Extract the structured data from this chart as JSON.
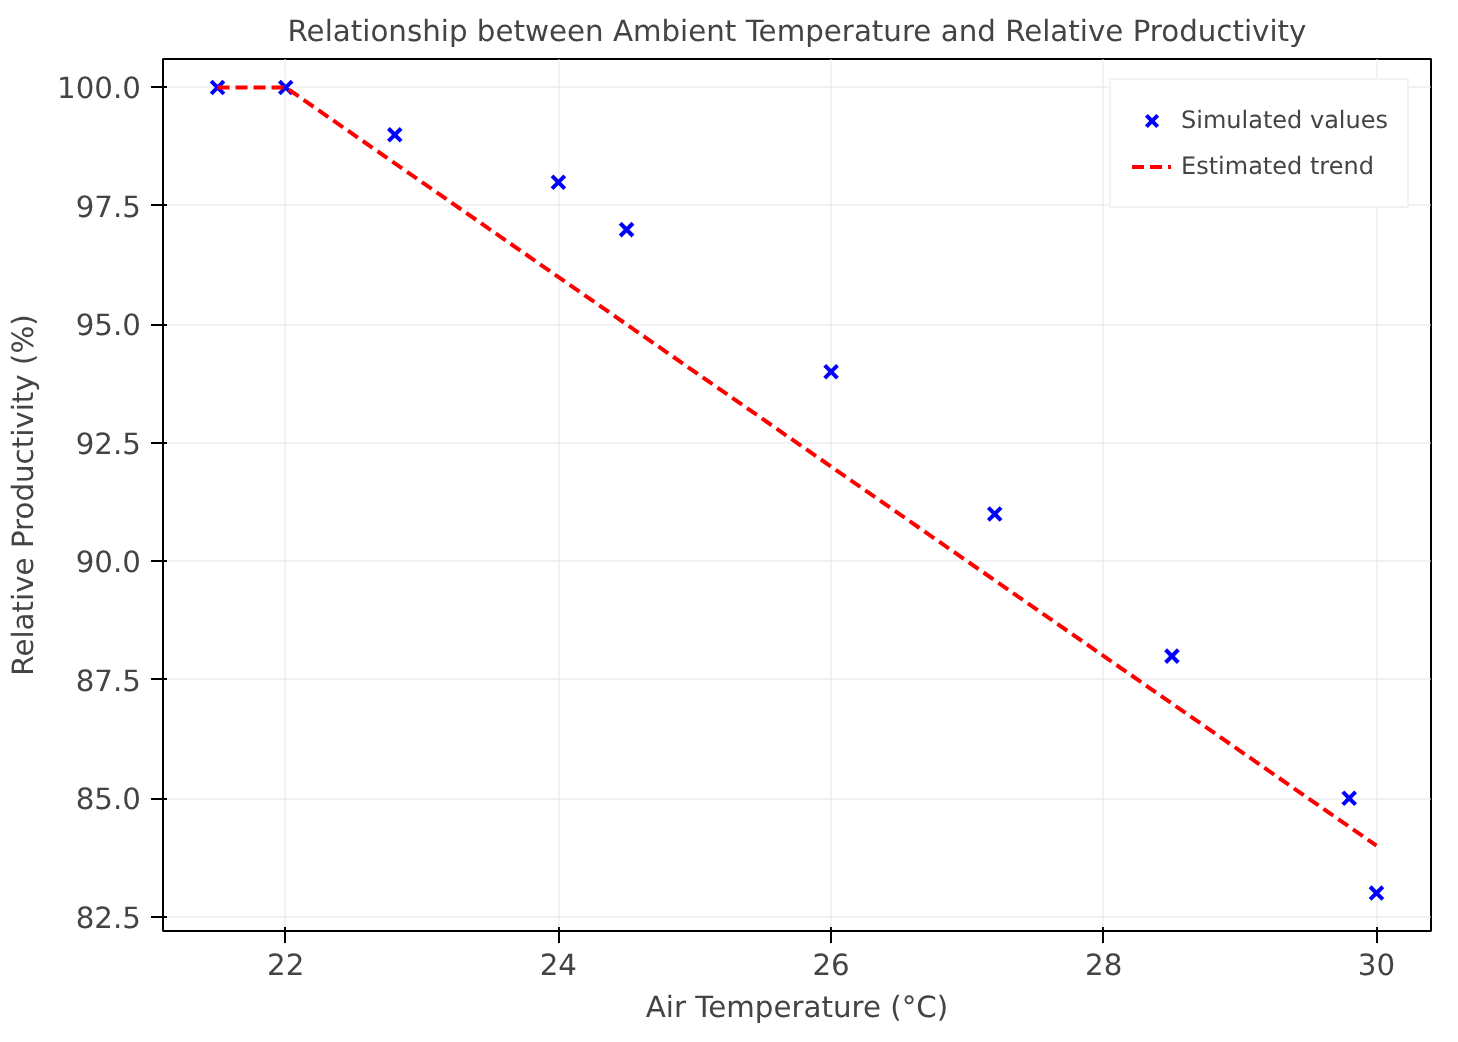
{
  "chart_data": {
    "type": "scatter",
    "title": "Relationship between Ambient Temperature and Relative Productivity",
    "xlabel": "Air Temperature (°C)",
    "ylabel": "Relative Productivity (%)",
    "xlim": [
      21.1,
      30.4
    ],
    "ylim": [
      82.2,
      100.6
    ],
    "xticks": [
      22,
      24,
      26,
      28,
      30
    ],
    "yticks": [
      {
        "value": 82.5,
        "label": "82.5"
      },
      {
        "value": 85,
        "label": "85.0"
      },
      {
        "value": 87.5,
        "label": "87.5"
      },
      {
        "value": 90,
        "label": "90.0"
      },
      {
        "value": 92.5,
        "label": "92.5"
      },
      {
        "value": 95,
        "label": "95.0"
      },
      {
        "value": 97.5,
        "label": "97.5"
      },
      {
        "value": 100,
        "label": "100.0"
      }
    ],
    "grid": true,
    "legend": "top right",
    "series": [
      {
        "name": "Simulated values",
        "color": "#0000ff",
        "marker": "cross",
        "x": [
          21.5,
          22,
          22.8,
          24,
          24.5,
          26,
          27.2,
          28.5,
          29.8,
          30
        ],
        "values": [
          100,
          100,
          99,
          98,
          97,
          94,
          91,
          88,
          85,
          83
        ]
      },
      {
        "name": "Estimated trend",
        "type": "line",
        "color": "#ff0000",
        "line_style": "dashed",
        "x": [
          21.5,
          22,
          30
        ],
        "values": [
          100,
          100,
          84
        ]
      }
    ]
  }
}
